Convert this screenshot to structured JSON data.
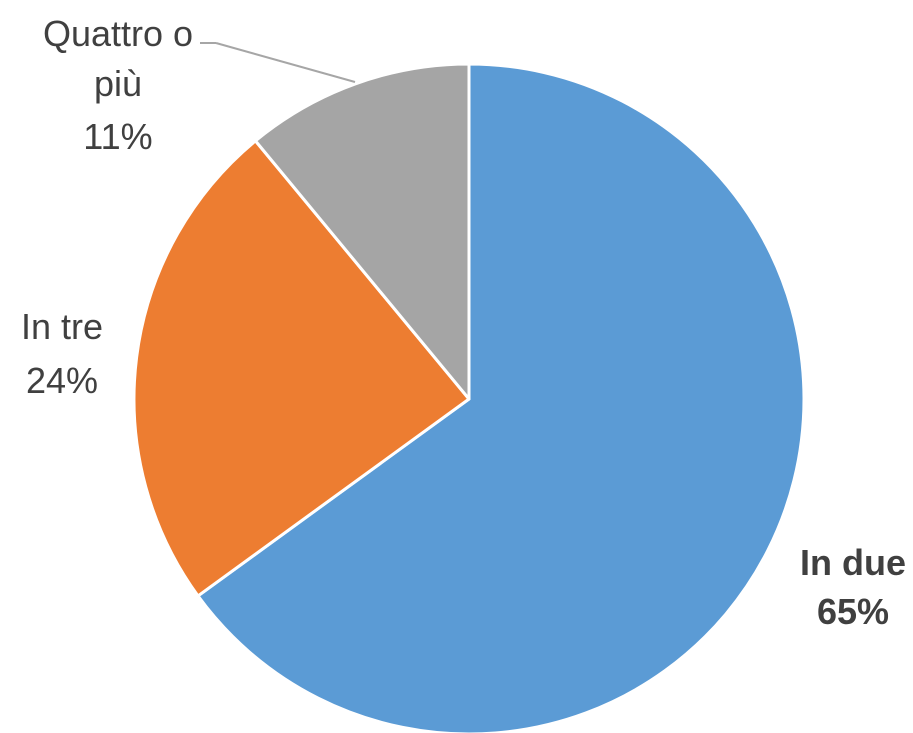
{
  "chart_data": {
    "type": "pie",
    "title": "",
    "start_angle_deg": 0,
    "direction": "clockwise",
    "legend": "none",
    "slices": [
      {
        "name": "In due",
        "value": 65,
        "label": "65%",
        "color": "#5B9BD5",
        "bold": true
      },
      {
        "name": "In tre",
        "value": 24,
        "label": "24%",
        "color": "#ED7D31",
        "bold": false
      },
      {
        "name": "Quattro o più",
        "name_lines": [
          "Quattro o",
          "più"
        ],
        "value": 11,
        "label": "11%",
        "color": "#A5A5A5",
        "bold": false
      }
    ]
  }
}
